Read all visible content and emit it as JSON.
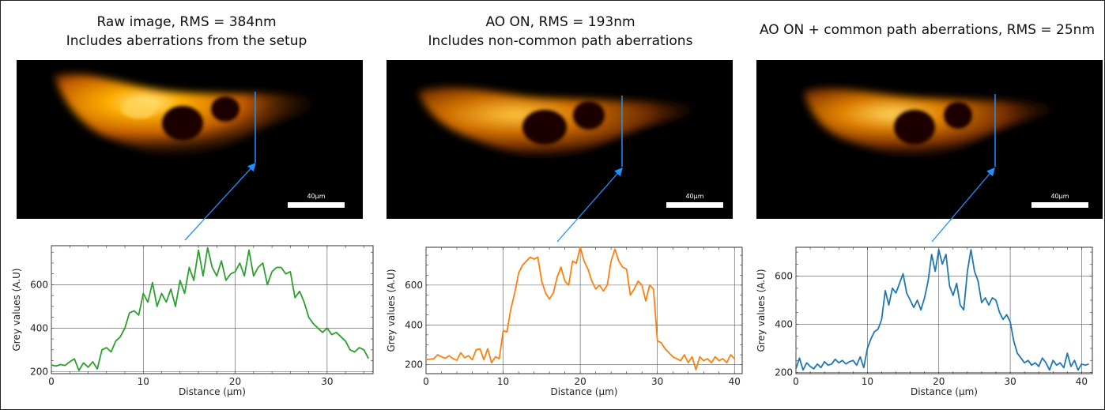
{
  "panels": [
    {
      "id": "raw",
      "title_line1": "Raw image, RMS = 384nm",
      "title_line2": "Includes aberrations from the setup",
      "scalebar_label": "40µm",
      "color": "#2ca02c"
    },
    {
      "id": "ao-on",
      "title_line1": "AO ON, RMS = 193nm",
      "title_line2": "Includes non-common path aberrations",
      "scalebar_label": "40µm",
      "color": "#ff7f0e"
    },
    {
      "id": "ao-common",
      "title_line1": "",
      "title_line2": "AO ON + common path aberrations, RMS = 25nm",
      "scalebar_label": "40µm",
      "color": "#1f77b4"
    }
  ],
  "colors": {
    "raw_line": "#2ca02c",
    "ao_line": "#ff7f0e",
    "common_line": "#1f77b4",
    "profile_marker": "#1e90ff",
    "image_background": "#000000",
    "scalebar": "#ffffff"
  },
  "chart_data": [
    {
      "type": "line",
      "xlabel": "Distance (µm)",
      "ylabel": "Grey values (A.U)",
      "xlim": [
        0,
        35
      ],
      "ylim": [
        190,
        780
      ],
      "xticks": [
        0,
        10,
        20,
        30
      ],
      "yticks": [
        200,
        400,
        600
      ],
      "grid": true,
      "series": [
        {
          "x": [
            0,
            0.5,
            1,
            1.5,
            2,
            2.5,
            3,
            3.5,
            4,
            4.5,
            5,
            5.5,
            6,
            6.5,
            7,
            7.5,
            8,
            8.5,
            9,
            9.5,
            10,
            10.5,
            11,
            11.5,
            12,
            12.5,
            13,
            13.5,
            14,
            14.5,
            15,
            15.5,
            16,
            16.5,
            17,
            17.5,
            18,
            18.5,
            19,
            19.5,
            20,
            20.5,
            21,
            21.5,
            22,
            22.5,
            23,
            23.5,
            24,
            24.5,
            25,
            25.5,
            26,
            26.5,
            27,
            27.5,
            28,
            28.5,
            29,
            29.5,
            30,
            30.5,
            31,
            31.5,
            32,
            32.5,
            33,
            33.5,
            34,
            34.5
          ],
          "values": [
            230,
            225,
            232,
            228,
            245,
            258,
            205,
            240,
            220,
            245,
            212,
            300,
            310,
            290,
            340,
            360,
            400,
            470,
            480,
            460,
            560,
            520,
            610,
            500,
            560,
            520,
            580,
            500,
            620,
            560,
            680,
            620,
            760,
            640,
            770,
            680,
            640,
            710,
            620,
            650,
            660,
            700,
            640,
            760,
            640,
            680,
            700,
            600,
            660,
            680,
            680,
            650,
            660,
            540,
            570,
            520,
            450,
            420,
            400,
            380,
            400,
            370,
            380,
            360,
            340,
            300,
            290,
            310,
            300,
            260
          ]
        }
      ]
    },
    {
      "type": "line",
      "xlabel": "Distance (µm)",
      "ylabel": "Grey values (A.U)",
      "xlim": [
        0,
        41
      ],
      "ylim": [
        155,
        790
      ],
      "xticks": [
        0,
        10,
        20,
        30,
        40
      ],
      "yticks": [
        200,
        400,
        600
      ],
      "grid": true,
      "series": [
        {
          "x": [
            0,
            0.5,
            1,
            1.5,
            2,
            2.5,
            3,
            3.5,
            4,
            4.5,
            5,
            5.5,
            6,
            6.5,
            7,
            7.5,
            8,
            8.5,
            9,
            9.5,
            10,
            10.5,
            11,
            11.5,
            12,
            12.5,
            13,
            13.5,
            14,
            14.5,
            15,
            15.5,
            16,
            16.5,
            17,
            17.5,
            18,
            18.5,
            19,
            19.5,
            20,
            20.5,
            21,
            21.5,
            22,
            22.5,
            23,
            23.5,
            24,
            24.5,
            25,
            25.5,
            26,
            26.5,
            27,
            27.5,
            28,
            28.5,
            29,
            29.5,
            30,
            30.5,
            31,
            31.5,
            32,
            32.5,
            33,
            33.5,
            34,
            34.5,
            35,
            35.5,
            36,
            36.5,
            37,
            37.5,
            38,
            38.5,
            39,
            39.5,
            40
          ],
          "values": [
            225,
            228,
            230,
            250,
            240,
            232,
            245,
            230,
            222,
            260,
            235,
            245,
            225,
            275,
            280,
            225,
            280,
            210,
            240,
            230,
            370,
            365,
            480,
            560,
            660,
            700,
            720,
            740,
            730,
            740,
            620,
            560,
            530,
            560,
            640,
            690,
            620,
            600,
            720,
            710,
            790,
            720,
            680,
            620,
            580,
            600,
            570,
            600,
            720,
            780,
            720,
            690,
            680,
            550,
            580,
            620,
            600,
            520,
            600,
            580,
            320,
            310,
            280,
            260,
            240,
            230,
            220,
            250,
            210,
            240,
            175,
            240,
            220,
            230,
            210,
            240,
            220,
            230,
            210,
            250,
            230
          ]
        }
      ]
    },
    {
      "type": "line",
      "xlabel": "Distance (µm)",
      "ylabel": "Grey values (A.U)",
      "xlim": [
        0,
        41.5
      ],
      "ylim": [
        195,
        720
      ],
      "xticks": [
        0,
        10,
        20,
        30,
        40
      ],
      "yticks": [
        200,
        400,
        600
      ],
      "grid": true,
      "series": [
        {
          "x": [
            0,
            0.5,
            1,
            1.5,
            2,
            2.5,
            3,
            3.5,
            4,
            4.5,
            5,
            5.5,
            6,
            6.5,
            7,
            7.5,
            8,
            8.5,
            9,
            9.5,
            10,
            10.5,
            11,
            11.5,
            12,
            12.5,
            13,
            13.5,
            14,
            14.5,
            15,
            15.5,
            16,
            16.5,
            17,
            17.5,
            18,
            18.5,
            19,
            19.5,
            20,
            20.5,
            21,
            21.5,
            22,
            22.5,
            23,
            23.5,
            24,
            24.5,
            25,
            25.5,
            26,
            26.5,
            27,
            27.5,
            28,
            28.5,
            29,
            29.5,
            30,
            30.5,
            31,
            31.5,
            32,
            32.5,
            33,
            33.5,
            34,
            34.5,
            35,
            35.5,
            36,
            36.5,
            37,
            37.5,
            38,
            38.5,
            39,
            39.5,
            40,
            40.5,
            41
          ],
          "values": [
            215,
            260,
            210,
            240,
            225,
            215,
            235,
            220,
            245,
            230,
            235,
            255,
            240,
            250,
            235,
            245,
            250,
            230,
            265,
            220,
            300,
            340,
            370,
            380,
            420,
            540,
            480,
            550,
            530,
            570,
            610,
            530,
            500,
            470,
            500,
            460,
            510,
            580,
            690,
            620,
            710,
            650,
            690,
            560,
            520,
            570,
            480,
            460,
            620,
            710,
            620,
            580,
            490,
            510,
            480,
            510,
            500,
            450,
            420,
            440,
            410,
            330,
            280,
            260,
            240,
            250,
            230,
            240,
            225,
            260,
            240,
            210,
            250,
            230,
            240,
            220,
            280,
            225,
            250,
            210,
            235,
            230,
            235
          ]
        }
      ]
    }
  ]
}
